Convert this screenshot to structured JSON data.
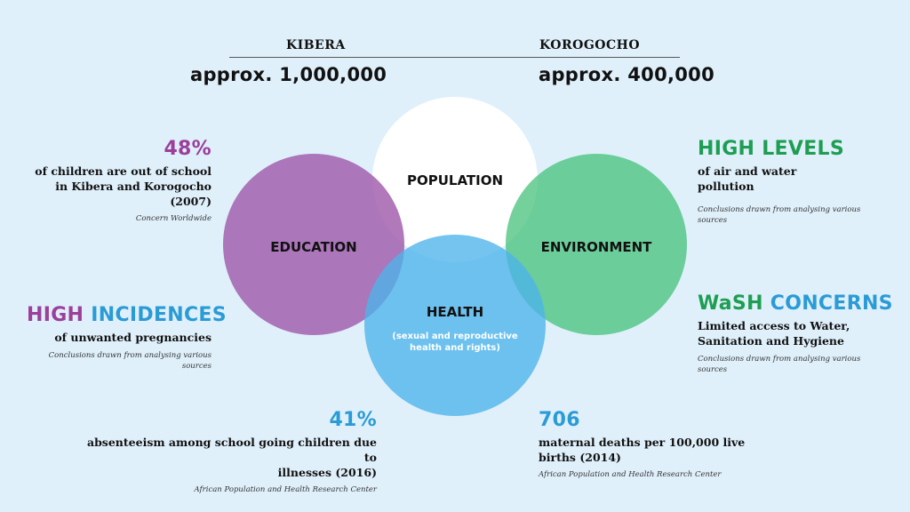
{
  "header": {
    "left_place": "KIBERA",
    "left_population": "approx. 1,000,000",
    "right_place": "KOROGOCHO",
    "right_population": "approx. 400,000"
  },
  "circles": {
    "population": "POPULATION",
    "education": "EDUCATION",
    "environment": "ENVIRONMENT",
    "health": "HEALTH",
    "health_sub_line1": "(sexual and reproductive",
    "health_sub_line2": "health and rights)"
  },
  "colors": {
    "education": "#a05aab",
    "environment": "#3fbf74",
    "health": "#4db4ea",
    "population": "#ffffff",
    "background": "#dff0fb"
  },
  "stats": {
    "education_top": {
      "value": "48%",
      "line1": "of children are out of school",
      "line2": "in Kibera and Korogocho",
      "line3": "(2007)",
      "source": "Concern Worldwide"
    },
    "education_bottom": {
      "value_part1": "HIGH",
      "value_part2": "INCIDENCES",
      "line1": "of unwanted pregnancies",
      "source_line1": "Conclusions drawn from analysing various",
      "source_line2": "sources"
    },
    "environment_top": {
      "value": "HIGH LEVELS",
      "line1": "of air and water",
      "line2": "pollution",
      "source_line1": "Conclusions drawn from analysing various",
      "source_line2": "sources"
    },
    "environment_bottom": {
      "value_part1": "WaSH",
      "value_part2": "CONCERNS",
      "line1": "Limited access to Water,",
      "line2": "Sanitation and Hygiene",
      "source_line1": "Conclusions drawn from analysing various",
      "source_line2": "sources"
    },
    "health_left": {
      "value": "41%",
      "line1": "absenteeism among school going children due to",
      "line2": "illnesses (2016)",
      "source": "African Population and Health Research Center"
    },
    "health_right": {
      "value": "706",
      "line1": "maternal deaths per 100,000 live",
      "line2": "births (2014)",
      "source": "African Population and Health Research Center"
    }
  }
}
